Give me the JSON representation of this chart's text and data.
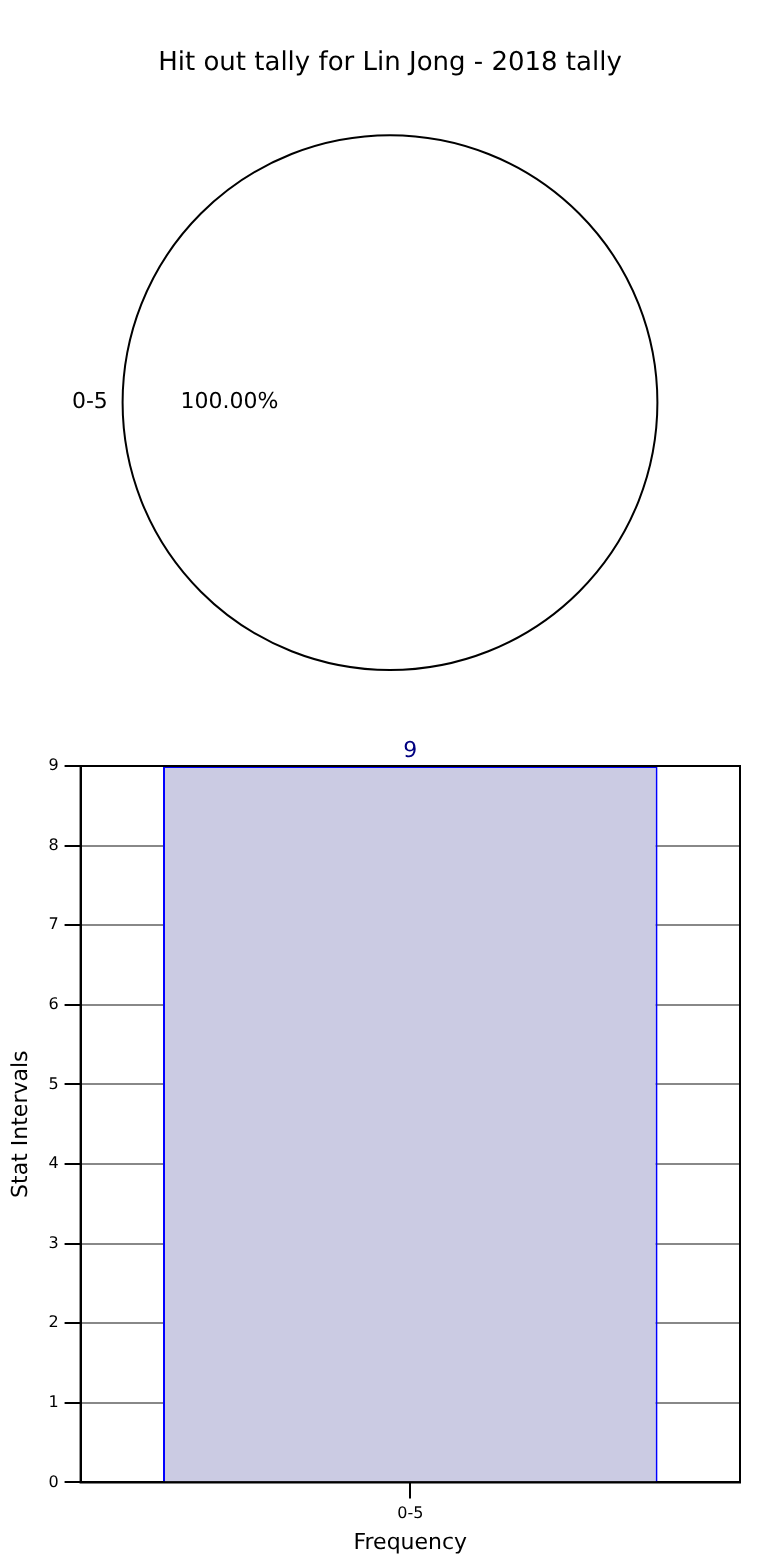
{
  "chart_data": [
    {
      "type": "pie",
      "title": "Hit out tally for Lin Jong - 2018 tally",
      "categories": [
        "0-5"
      ],
      "values": [
        100
      ],
      "colors": [
        "#ffffff"
      ],
      "value_labels": [
        "100.00%"
      ],
      "legend": false
    },
    {
      "type": "bar",
      "categories": [
        "0-5"
      ],
      "values": [
        9
      ],
      "color": "#cbcbe3",
      "xlabel": "Frequency",
      "ylabel": "Stat Intervals",
      "ylim": [
        0,
        9
      ],
      "yticks": [
        0,
        1,
        2,
        3,
        4,
        5,
        6,
        7,
        8,
        9
      ],
      "grid": true,
      "data_labels": true,
      "legend": false
    }
  ]
}
